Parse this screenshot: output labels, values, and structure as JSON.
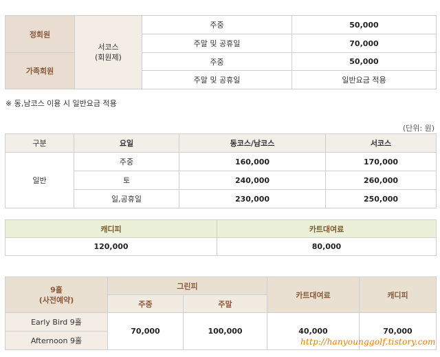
{
  "membership": {
    "row1_label": "정회원",
    "row2_label": "가족회원",
    "course_label": "서코스\n(회원제)",
    "rows": [
      {
        "day": "주중",
        "price": "50,000"
      },
      {
        "day": "주말 및 공휴일",
        "price": "70,000"
      },
      {
        "day": "주중",
        "price": "50,000"
      },
      {
        "day": "주말 및 공휴일",
        "price": "일반요금 적용"
      }
    ]
  },
  "note": "※ 동,남코스 이용 시 일반요금 적용",
  "unit": "(단위: 원)",
  "general": {
    "headers": [
      "구분",
      "요일",
      "동코스/남코스",
      "서코스"
    ],
    "category": "일반",
    "rows": [
      {
        "day": "주중",
        "east_south": "160,000",
        "west": "170,000"
      },
      {
        "day": "토",
        "east_south": "240,000",
        "west": "260,000"
      },
      {
        "day": "일,공휴일",
        "east_south": "230,000",
        "west": "250,000"
      }
    ]
  },
  "fees": {
    "caddie_label": "캐디피",
    "cart_label": "카트대여료",
    "caddie_value": "120,000",
    "cart_value": "80,000"
  },
  "nine_hole": {
    "title": "9홀\n(사전예약)",
    "green_fee": "그린피",
    "weekday": "주중",
    "weekend": "주말",
    "cart": "카트대여료",
    "caddie": "캐디피",
    "early": "Early Bird 9홀",
    "afternoon": "Afternoon 9홀",
    "weekday_price": "70,000",
    "weekend_price": "100,000",
    "cart_price": "40,000",
    "caddie_price": "70,000"
  },
  "watermark": "http://hanyounggolf.tistory.com"
}
